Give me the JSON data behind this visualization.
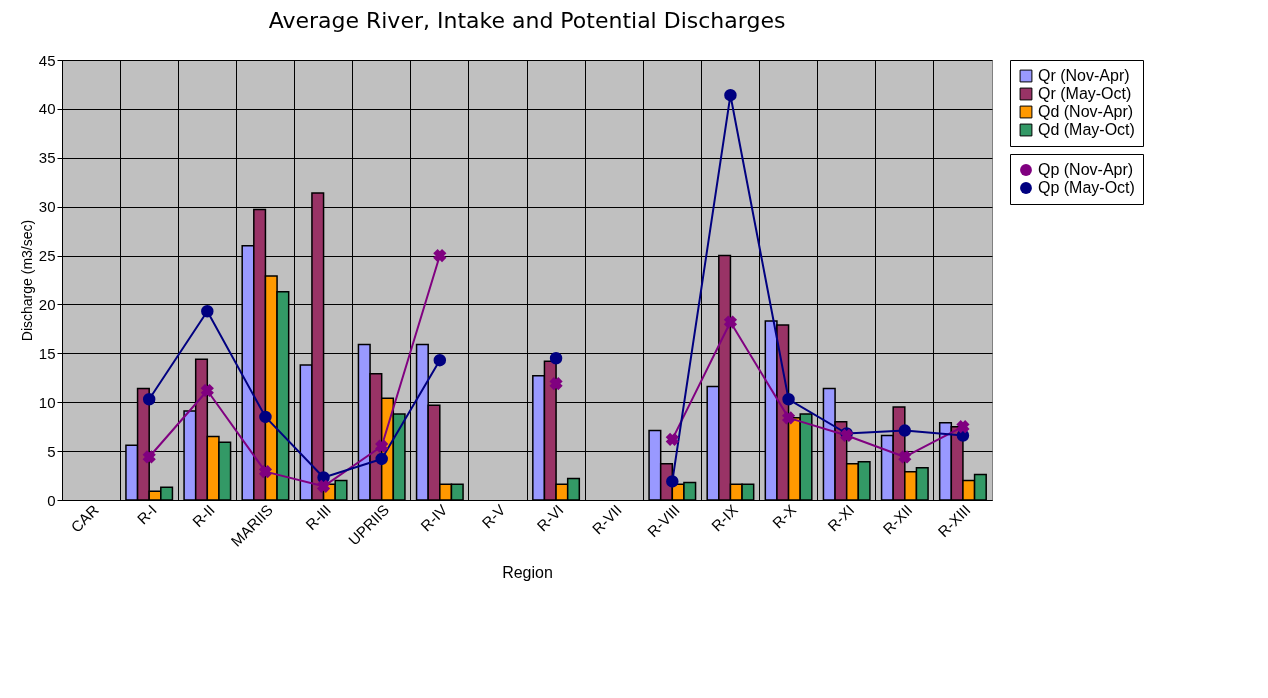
{
  "chart_data": {
    "type": "bar",
    "title": "Average River, Intake and Potential Discharges",
    "xlabel": "Region",
    "ylabel": "Discharge (m3/sec)",
    "categories": [
      "CAR",
      "R-I",
      "R-II",
      "MARIIS",
      "R-III",
      "UPRIIS",
      "R-IV",
      "R-V",
      "R-VI",
      "R-VII",
      "R-VIII",
      "R-IX",
      "R-X",
      "R-XI",
      "R-XII",
      "R-XIII"
    ],
    "series": [
      {
        "name": "Qr (Nov-Apr)",
        "color": "#9999ff",
        "values": [
          null,
          5.6,
          9.1,
          26,
          13.8,
          15.9,
          15.9,
          null,
          12.7,
          null,
          7.1,
          11.6,
          18.3,
          11.4,
          6.6,
          7.9
        ]
      },
      {
        "name": "Qr (May-Oct)",
        "color": "#993366",
        "values": [
          null,
          11.4,
          14.4,
          29.7,
          31.4,
          12.9,
          9.7,
          null,
          14.2,
          null,
          3.7,
          25,
          17.9,
          8,
          9.5,
          7.5
        ]
      },
      {
        "name": "Qd (Nov-Apr)",
        "color": "#ff9900",
        "values": [
          null,
          0.9,
          6.5,
          22.9,
          1.6,
          10.4,
          1.6,
          null,
          1.6,
          null,
          1.6,
          1.6,
          8.4,
          3.7,
          2.9,
          2
        ]
      },
      {
        "name": "Qd (May-Oct)",
        "color": "#339966",
        "values": [
          null,
          1.3,
          5.9,
          21.3,
          2,
          8.8,
          1.6,
          null,
          2.2,
          null,
          1.8,
          1.6,
          8.8,
          3.9,
          3.3,
          2.6
        ]
      },
      {
        "name": "Qp (Nov-Apr)",
        "type": "line",
        "marker": "cross",
        "color": "#800080",
        "values": [
          null,
          4.4,
          11.2,
          2.9,
          1.4,
          5.5,
          25,
          null,
          11.9,
          null,
          6.2,
          18.2,
          8.4,
          6.6,
          4.4,
          7.5
        ]
      },
      {
        "name": "Qp (May-Oct)",
        "type": "line",
        "marker": "circle",
        "color": "#000080",
        "values": [
          null,
          10.3,
          19.3,
          8.5,
          2.3,
          4.2,
          14.3,
          null,
          14.5,
          null,
          1.9,
          41.4,
          10.3,
          6.8,
          7.1,
          6.6
        ]
      }
    ],
    "ylim": [
      0,
      45
    ],
    "yticks": [
      0,
      5,
      10,
      15,
      20,
      25,
      30,
      35,
      40,
      45
    ],
    "grid": true,
    "legend": "right"
  }
}
